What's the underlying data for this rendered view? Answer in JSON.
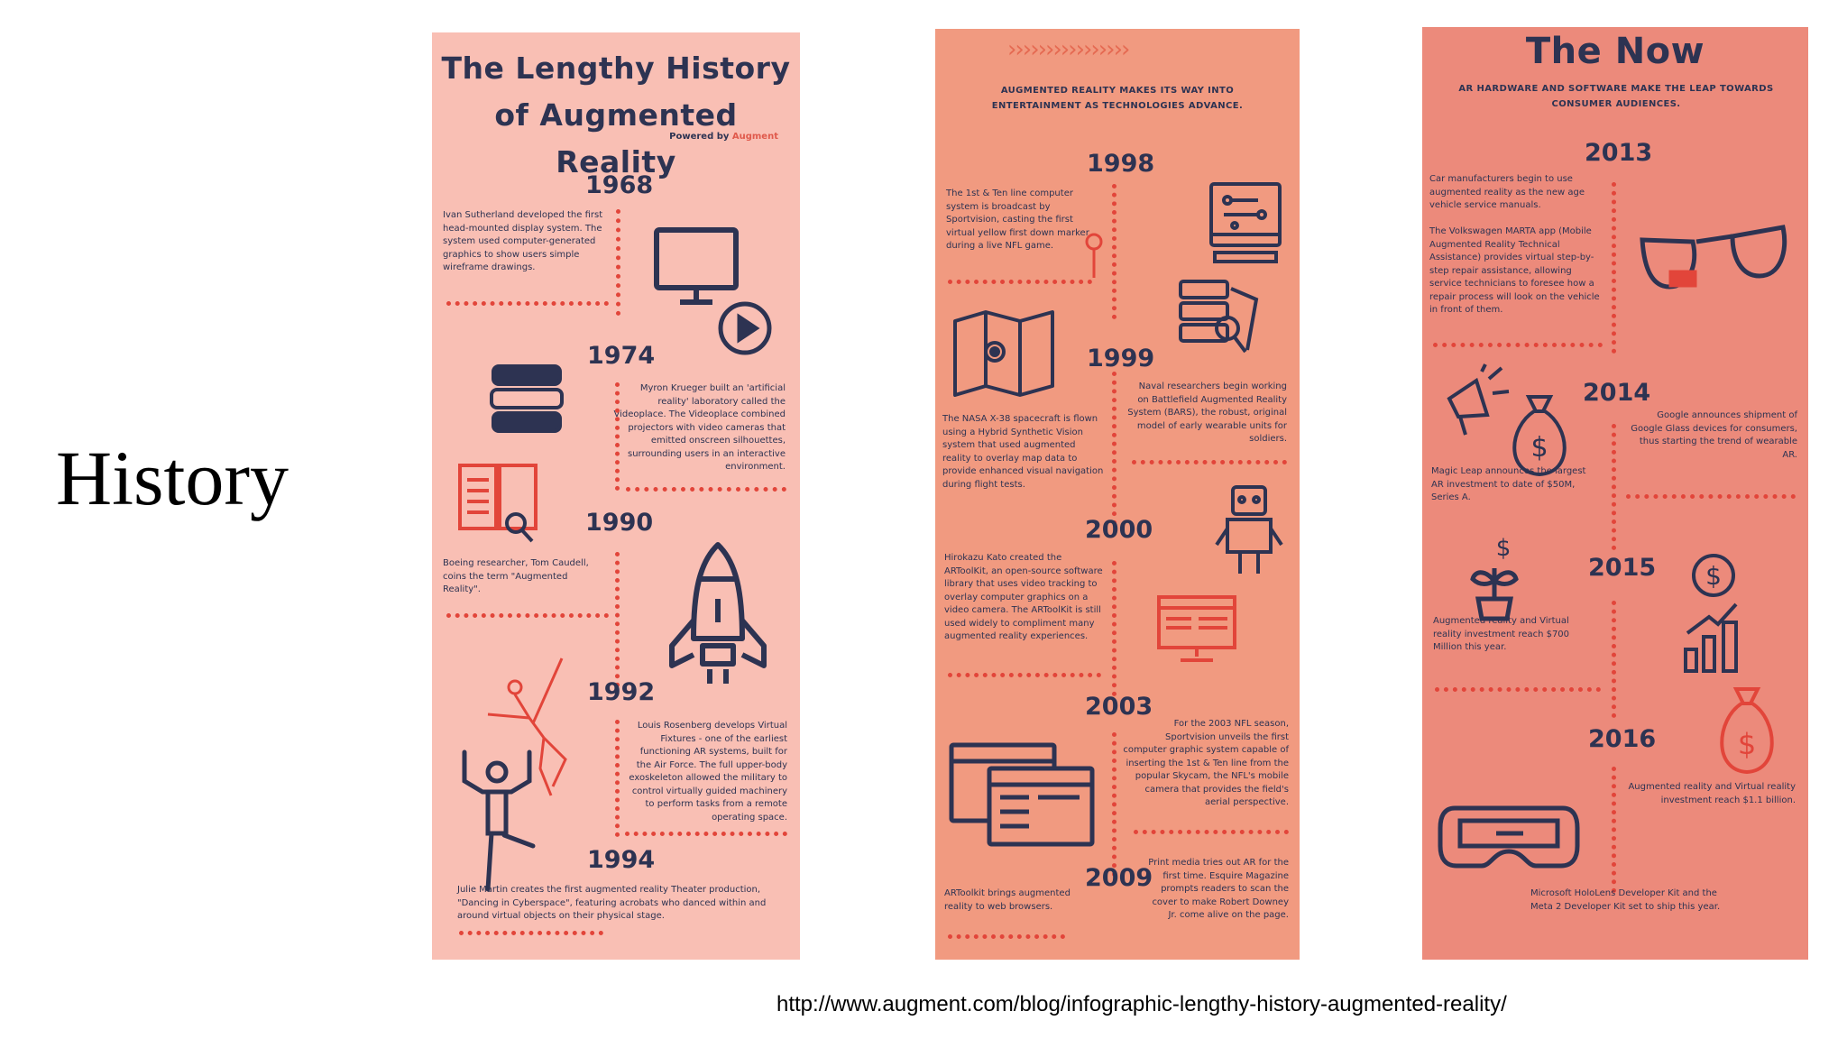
{
  "slide": {
    "title": "History",
    "source_url": "http://www.augment.com/blog/infographic-lengthy-history-augmented-reality/"
  },
  "panel1": {
    "title_line1": "The Lengthy History",
    "title_line2": "of Augmented Reality",
    "powered_by": "Powered by",
    "brand": "Augment",
    "entries": [
      {
        "year": "1968",
        "text": "Ivan Sutherland developed the first head-mounted display system. The system used computer-generated graphics to show users simple wireframe drawings."
      },
      {
        "year": "1974",
        "text": "Myron Krueger built an 'artificial reality' laboratory called the Videoplace. The Videoplace combined projectors with video cameras that emitted onscreen silhouettes, surrounding users in an interactive environment."
      },
      {
        "year": "1990",
        "text": "Boeing researcher, Tom Caudell, coins the term \"Augmented Reality\"."
      },
      {
        "year": "1992",
        "text": "Louis Rosenberg develops Virtual Fixtures - one of the earliest functioning AR systems, built for the Air Force. The full upper-body exoskeleton allowed the military to control virtually guided machinery to perform tasks from a remote operating space."
      },
      {
        "year": "1994",
        "text": "Julie Martin creates the first augmented reality Theater production, \"Dancing in Cyberspace\", featuring acrobats who danced within and around virtual objects on their physical stage."
      }
    ]
  },
  "panel2": {
    "subtitle": "Augmented reality makes its way into entertainment as technologies advance.",
    "entries": [
      {
        "year": "1998",
        "text": "The 1st & Ten line computer system is broadcast by Sportvision, casting the first virtual yellow first down marker during a live NFL game."
      },
      {
        "year": "1999",
        "text": "Naval researchers begin working on Battlefield Augmented Reality System (BARS), the robust, original model of early wearable units for soldiers."
      },
      {
        "year": "1999b",
        "text": "The NASA X-38 spacecraft is flown using a Hybrid Synthetic Vision system that used augmented reality to overlay map data to provide enhanced visual navigation during flight tests."
      },
      {
        "year": "2000",
        "text": "Hirokazu Kato created the ARToolKit, an open-source software library that uses video tracking to overlay computer graphics on a video camera. The ARToolKit is still used widely to compliment many augmented reality experiences."
      },
      {
        "year": "2003",
        "text": "For the 2003 NFL season, Sportvision unveils the first computer graphic system capable of inserting the 1st & Ten line from the popular Skycam, the NFL's mobile camera that provides the field's aerial perspective."
      },
      {
        "year": "2009",
        "text": "ARToolkit brings augmented reality to web browsers."
      },
      {
        "year": "2009b",
        "text": "Print media tries out AR for the first time. Esquire Magazine prompts readers to scan the cover to make Robert Downey Jr. come alive on the page."
      }
    ],
    "year_labels": [
      "1998",
      "1999",
      "2000",
      "2003",
      "2009"
    ]
  },
  "panel3": {
    "title": "The Now",
    "subtitle": "AR hardware and software make the leap towards consumer audiences.",
    "entries": [
      {
        "year": "2013",
        "text": "Car manufacturers begin to use augmented reality as the new age vehicle service manuals."
      },
      {
        "year": "2013b",
        "text": "The Volkswagen MARTA app (Mobile Augmented Reality Technical Assistance) provides virtual step-by-step repair assistance, allowing service technicians to foresee how a repair process will look on the vehicle in front of them."
      },
      {
        "year": "2014",
        "text": "Google announces shipment of Google Glass devices for consumers, thus starting the trend of wearable AR."
      },
      {
        "year": "2014b",
        "text": "Magic Leap announces the largest AR investment to date of $50M, Series A."
      },
      {
        "year": "2015",
        "text": "Augmented reality and Virtual reality investment reach $700 Million this year."
      },
      {
        "year": "2016",
        "text": "Augmented reality and Virtual reality investment reach $1.1 billion."
      },
      {
        "year": "2016b",
        "text": "Microsoft HoloLens Developer Kit and the Meta 2 Developer Kit set to ship this year."
      }
    ],
    "year_labels": [
      "2013",
      "2014",
      "2015",
      "2016"
    ]
  },
  "colors": {
    "navy": "#2d3352",
    "dots": "#e2453a",
    "panel1_bg": "#f9bfb4",
    "panel2_bg": "#f19a80",
    "panel3_bg": "#ec8a7b"
  },
  "icons": [
    "monitor-icon",
    "play-icon",
    "books-icon",
    "open-book-icon",
    "rocket-icon",
    "dancer-icon",
    "gymnast-icon",
    "circuit-monitor-icon",
    "map-pin-icon",
    "map-icon",
    "documents-search-icon",
    "robot-icon",
    "browser-window-icon",
    "windows-icon",
    "glasses-icon",
    "megaphone-icon",
    "money-bag-icon",
    "plant-dollar-icon",
    "dollar-chart-icon",
    "vr-headset-icon"
  ]
}
